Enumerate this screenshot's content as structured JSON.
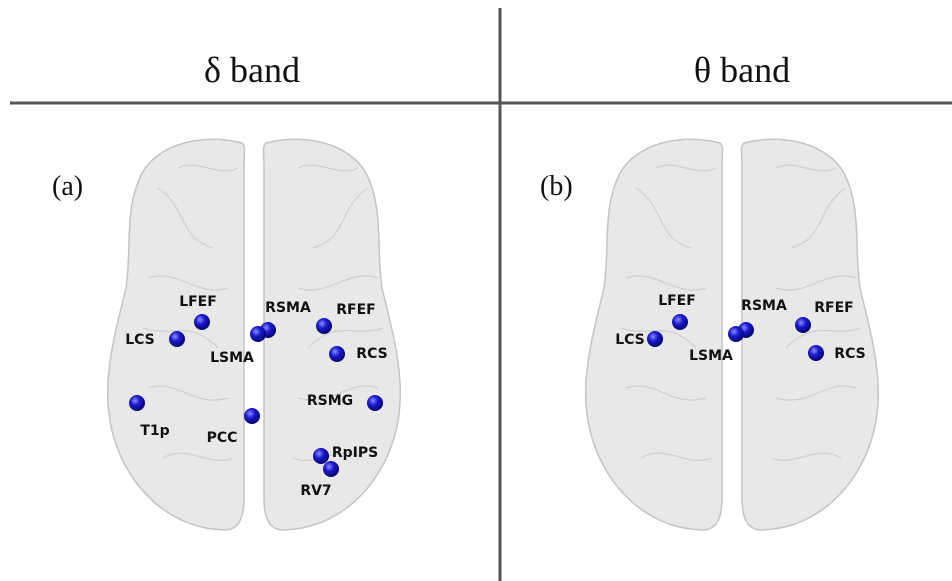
{
  "header": {
    "left": "δ band",
    "right": "θ band"
  },
  "panels": [
    {
      "label": "(a)",
      "nodes": [
        "LFEF",
        "LCS",
        "RSMA",
        "LSMA",
        "RFEF",
        "RCS",
        "RSMG",
        "T1p",
        "PCC",
        "RpIPS",
        "RV7"
      ]
    },
    {
      "label": "(b)",
      "nodes": [
        "LFEF",
        "LCS",
        "RSMA",
        "LSMA",
        "RFEF",
        "RCS"
      ]
    }
  ]
}
